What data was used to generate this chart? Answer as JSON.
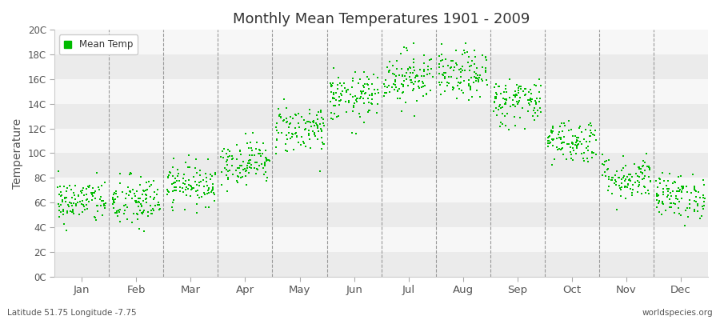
{
  "title": "Monthly Mean Temperatures 1901 - 2009",
  "ylabel": "Temperature",
  "dot_color": "#00BB00",
  "background_color": "#ffffff",
  "plot_bg_color": "#ffffff",
  "legend_label": "Mean Temp",
  "ytick_labels": [
    "0C",
    "2C",
    "4C",
    "6C",
    "8C",
    "10C",
    "12C",
    "14C",
    "16C",
    "18C",
    "20C"
  ],
  "ytick_values": [
    0,
    2,
    4,
    6,
    8,
    10,
    12,
    14,
    16,
    18,
    20
  ],
  "months": [
    "Jan",
    "Feb",
    "Mar",
    "Apr",
    "May",
    "Jun",
    "Jul",
    "Aug",
    "Sep",
    "Oct",
    "Nov",
    "Dec"
  ],
  "month_centers": [
    0.5,
    1.5,
    2.5,
    3.5,
    4.5,
    5.5,
    6.5,
    7.5,
    8.5,
    9.5,
    10.5,
    11.5
  ],
  "footnote_left": "Latitude 51.75 Longitude -7.75",
  "footnote_right": "worldspecies.org",
  "ylim": [
    0,
    20
  ],
  "xlim": [
    0,
    12
  ],
  "mean_temps": [
    6.1,
    6.0,
    7.5,
    9.3,
    12.0,
    14.5,
    16.2,
    16.3,
    14.2,
    11.0,
    8.0,
    6.5
  ],
  "std_temps": [
    0.9,
    1.1,
    0.85,
    0.9,
    1.0,
    1.0,
    1.1,
    1.0,
    1.0,
    0.9,
    0.9,
    0.9
  ],
  "n_years": 109,
  "seed": 42
}
